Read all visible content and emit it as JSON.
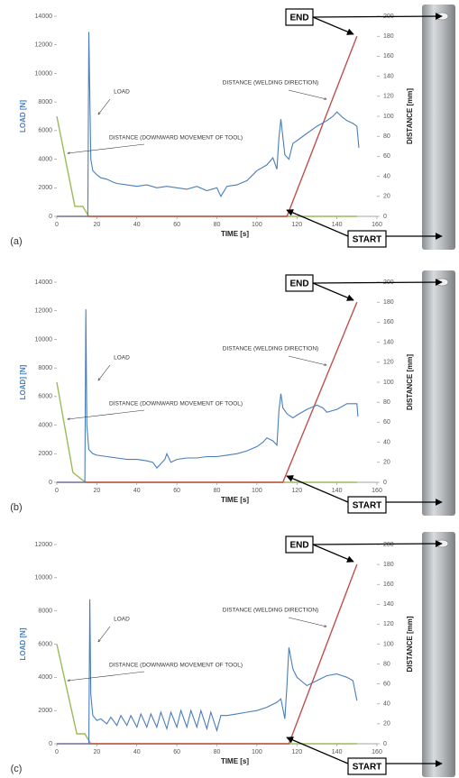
{
  "chart_data": [
    {
      "type": "line",
      "label": "(a)",
      "x_label": "TIME [s]",
      "y_label": "LOAD [N]",
      "y2_label": "DISTANCE [mm]",
      "xlim": [
        0,
        160
      ],
      "xticks": [
        0,
        20,
        40,
        60,
        80,
        100,
        120,
        140,
        160
      ],
      "ylim": [
        0,
        14000
      ],
      "yticks": [
        0,
        2000,
        4000,
        6000,
        8000,
        10000,
        12000,
        14000
      ],
      "y2lim": [
        0,
        200
      ],
      "y2ticks": [
        0,
        20,
        40,
        60,
        80,
        100,
        120,
        140,
        160,
        180,
        200
      ],
      "annotations": [
        "END",
        "START"
      ],
      "series": [
        {
          "name": "LOAD",
          "color": "#4a7ebb",
          "x": [
            0,
            15.5,
            16,
            17,
            18,
            20,
            22,
            25,
            28,
            30,
            35,
            40,
            45,
            50,
            55,
            60,
            65,
            70,
            75,
            80,
            82,
            85,
            90,
            95,
            100,
            105,
            108,
            110,
            111,
            112,
            114,
            116,
            118,
            120,
            125,
            130,
            135,
            138,
            140,
            143,
            145,
            148,
            150,
            151
          ],
          "values": [
            0,
            0,
            12900,
            4000,
            3200,
            2900,
            2700,
            2600,
            2400,
            2300,
            2200,
            2100,
            2200,
            2000,
            2100,
            2000,
            1900,
            2100,
            1800,
            2000,
            1400,
            2100,
            2200,
            2500,
            3200,
            3600,
            4100,
            3300,
            5500,
            6800,
            4300,
            4000,
            5100,
            5300,
            5800,
            6300,
            6700,
            7000,
            7300,
            6900,
            6700,
            6500,
            6300,
            4800
          ]
        },
        {
          "name": "DISTANCE (DOWNWARD MOVEMENT OF TOOL)",
          "color": "#9bbb59",
          "axis": "y2",
          "x": [
            0,
            9,
            13,
            16,
            20,
            150
          ],
          "values": [
            100,
            10,
            10,
            0,
            0,
            0
          ]
        },
        {
          "name": "DISTANCE (WELDING DIRECTION)",
          "color": "#c0504d",
          "axis": "y2",
          "x": [
            0,
            115,
            150
          ],
          "values": [
            0,
            0,
            180
          ]
        }
      ]
    },
    {
      "type": "line",
      "label": "(b)",
      "x_label": "TIME [s]",
      "y_label": "LOAD] [N]",
      "y2_label": "DISTANCE [mm]",
      "xlim": [
        0,
        160
      ],
      "xticks": [
        0,
        20,
        40,
        60,
        80,
        100,
        120,
        140,
        160
      ],
      "ylim": [
        0,
        14000
      ],
      "yticks": [
        0,
        2000,
        4000,
        6000,
        8000,
        10000,
        12000,
        14000
      ],
      "y2lim": [
        0,
        200
      ],
      "y2ticks": [
        0,
        20,
        40,
        60,
        80,
        100,
        120,
        140,
        160,
        180,
        200
      ],
      "annotations": [
        "END",
        "START"
      ],
      "series": [
        {
          "name": "LOAD",
          "color": "#4a7ebb",
          "x": [
            0,
            14,
            14.5,
            15,
            16,
            18,
            20,
            25,
            30,
            35,
            40,
            45,
            48,
            50,
            52,
            54,
            55,
            57,
            60,
            65,
            70,
            75,
            80,
            85,
            90,
            95,
            100,
            103,
            105,
            108,
            110,
            111,
            112,
            113,
            115,
            118,
            120,
            125,
            130,
            133,
            135,
            140,
            145,
            150,
            150.5
          ],
          "values": [
            0,
            0,
            12100,
            4000,
            2300,
            2000,
            1900,
            1800,
            1700,
            1600,
            1600,
            1500,
            1400,
            1000,
            1300,
            1600,
            2000,
            1400,
            1600,
            1700,
            1700,
            1800,
            1800,
            1900,
            2000,
            2200,
            2500,
            2800,
            3100,
            2900,
            2600,
            5000,
            6200,
            5200,
            4800,
            4500,
            4700,
            5100,
            5400,
            5200,
            4900,
            5100,
            5500,
            5500,
            4600
          ]
        },
        {
          "name": "DISTANCE (DOWNWARD MOVEMENT OF TOOL)",
          "color": "#9bbb59",
          "axis": "y2",
          "x": [
            0,
            8,
            13,
            15,
            150
          ],
          "values": [
            100,
            10,
            2,
            0,
            0
          ]
        },
        {
          "name": "DISTANCE (WELDING DIRECTION)",
          "color": "#c0504d",
          "axis": "y2",
          "x": [
            0,
            113,
            150
          ],
          "values": [
            0,
            0,
            180
          ]
        }
      ]
    },
    {
      "type": "line",
      "label": "(c)",
      "x_label": "TIME [s]",
      "y_label": "LOAD [N]",
      "y2_label": "DISTANCE [mm]",
      "xlim": [
        0,
        160
      ],
      "xticks": [
        0,
        20,
        40,
        60,
        80,
        100,
        120,
        140,
        160
      ],
      "ylim": [
        0,
        12000
      ],
      "yticks": [
        0,
        2000,
        4000,
        6000,
        8000,
        10000,
        12000
      ],
      "y2lim": [
        0,
        200
      ],
      "y2ticks": [
        0,
        20,
        40,
        60,
        80,
        100,
        120,
        140,
        160,
        180,
        200
      ],
      "annotations": [
        "END",
        "START"
      ],
      "series": [
        {
          "name": "LOAD",
          "color": "#4a7ebb",
          "x": [
            0,
            16,
            16.5,
            17,
            18,
            20,
            22,
            25,
            27,
            30,
            32,
            35,
            37,
            40,
            42,
            45,
            47,
            50,
            52,
            55,
            57,
            60,
            62,
            65,
            67,
            70,
            72,
            75,
            77,
            80,
            82,
            85,
            90,
            95,
            100,
            105,
            110,
            112,
            114,
            115,
            116,
            118,
            120,
            125,
            130,
            135,
            140,
            145,
            148,
            150
          ],
          "values": [
            0,
            0,
            8700,
            3000,
            1700,
            1400,
            1500,
            1200,
            1600,
            1100,
            1700,
            1100,
            1700,
            1000,
            1800,
            1000,
            1800,
            1000,
            1900,
            900,
            1900,
            1000,
            2000,
            1000,
            2000,
            1000,
            2000,
            900,
            1900,
            800,
            1700,
            1700,
            1800,
            1900,
            2000,
            2200,
            2500,
            2700,
            1500,
            3500,
            5800,
            4500,
            4000,
            3500,
            3800,
            4100,
            4200,
            4000,
            3800,
            2600
          ]
        },
        {
          "name": "DISTANCE (DOWNWARD MOVEMENT OF TOOL)",
          "color": "#9bbb59",
          "axis": "y2",
          "x": [
            0,
            10,
            14,
            17,
            150
          ],
          "values": [
            100,
            10,
            10,
            0,
            0
          ]
        },
        {
          "name": "DISTANCE (WELDING DIRECTION)",
          "color": "#c0504d",
          "axis": "y2",
          "x": [
            0,
            116,
            150
          ],
          "values": [
            0,
            0,
            180
          ]
        }
      ]
    }
  ]
}
